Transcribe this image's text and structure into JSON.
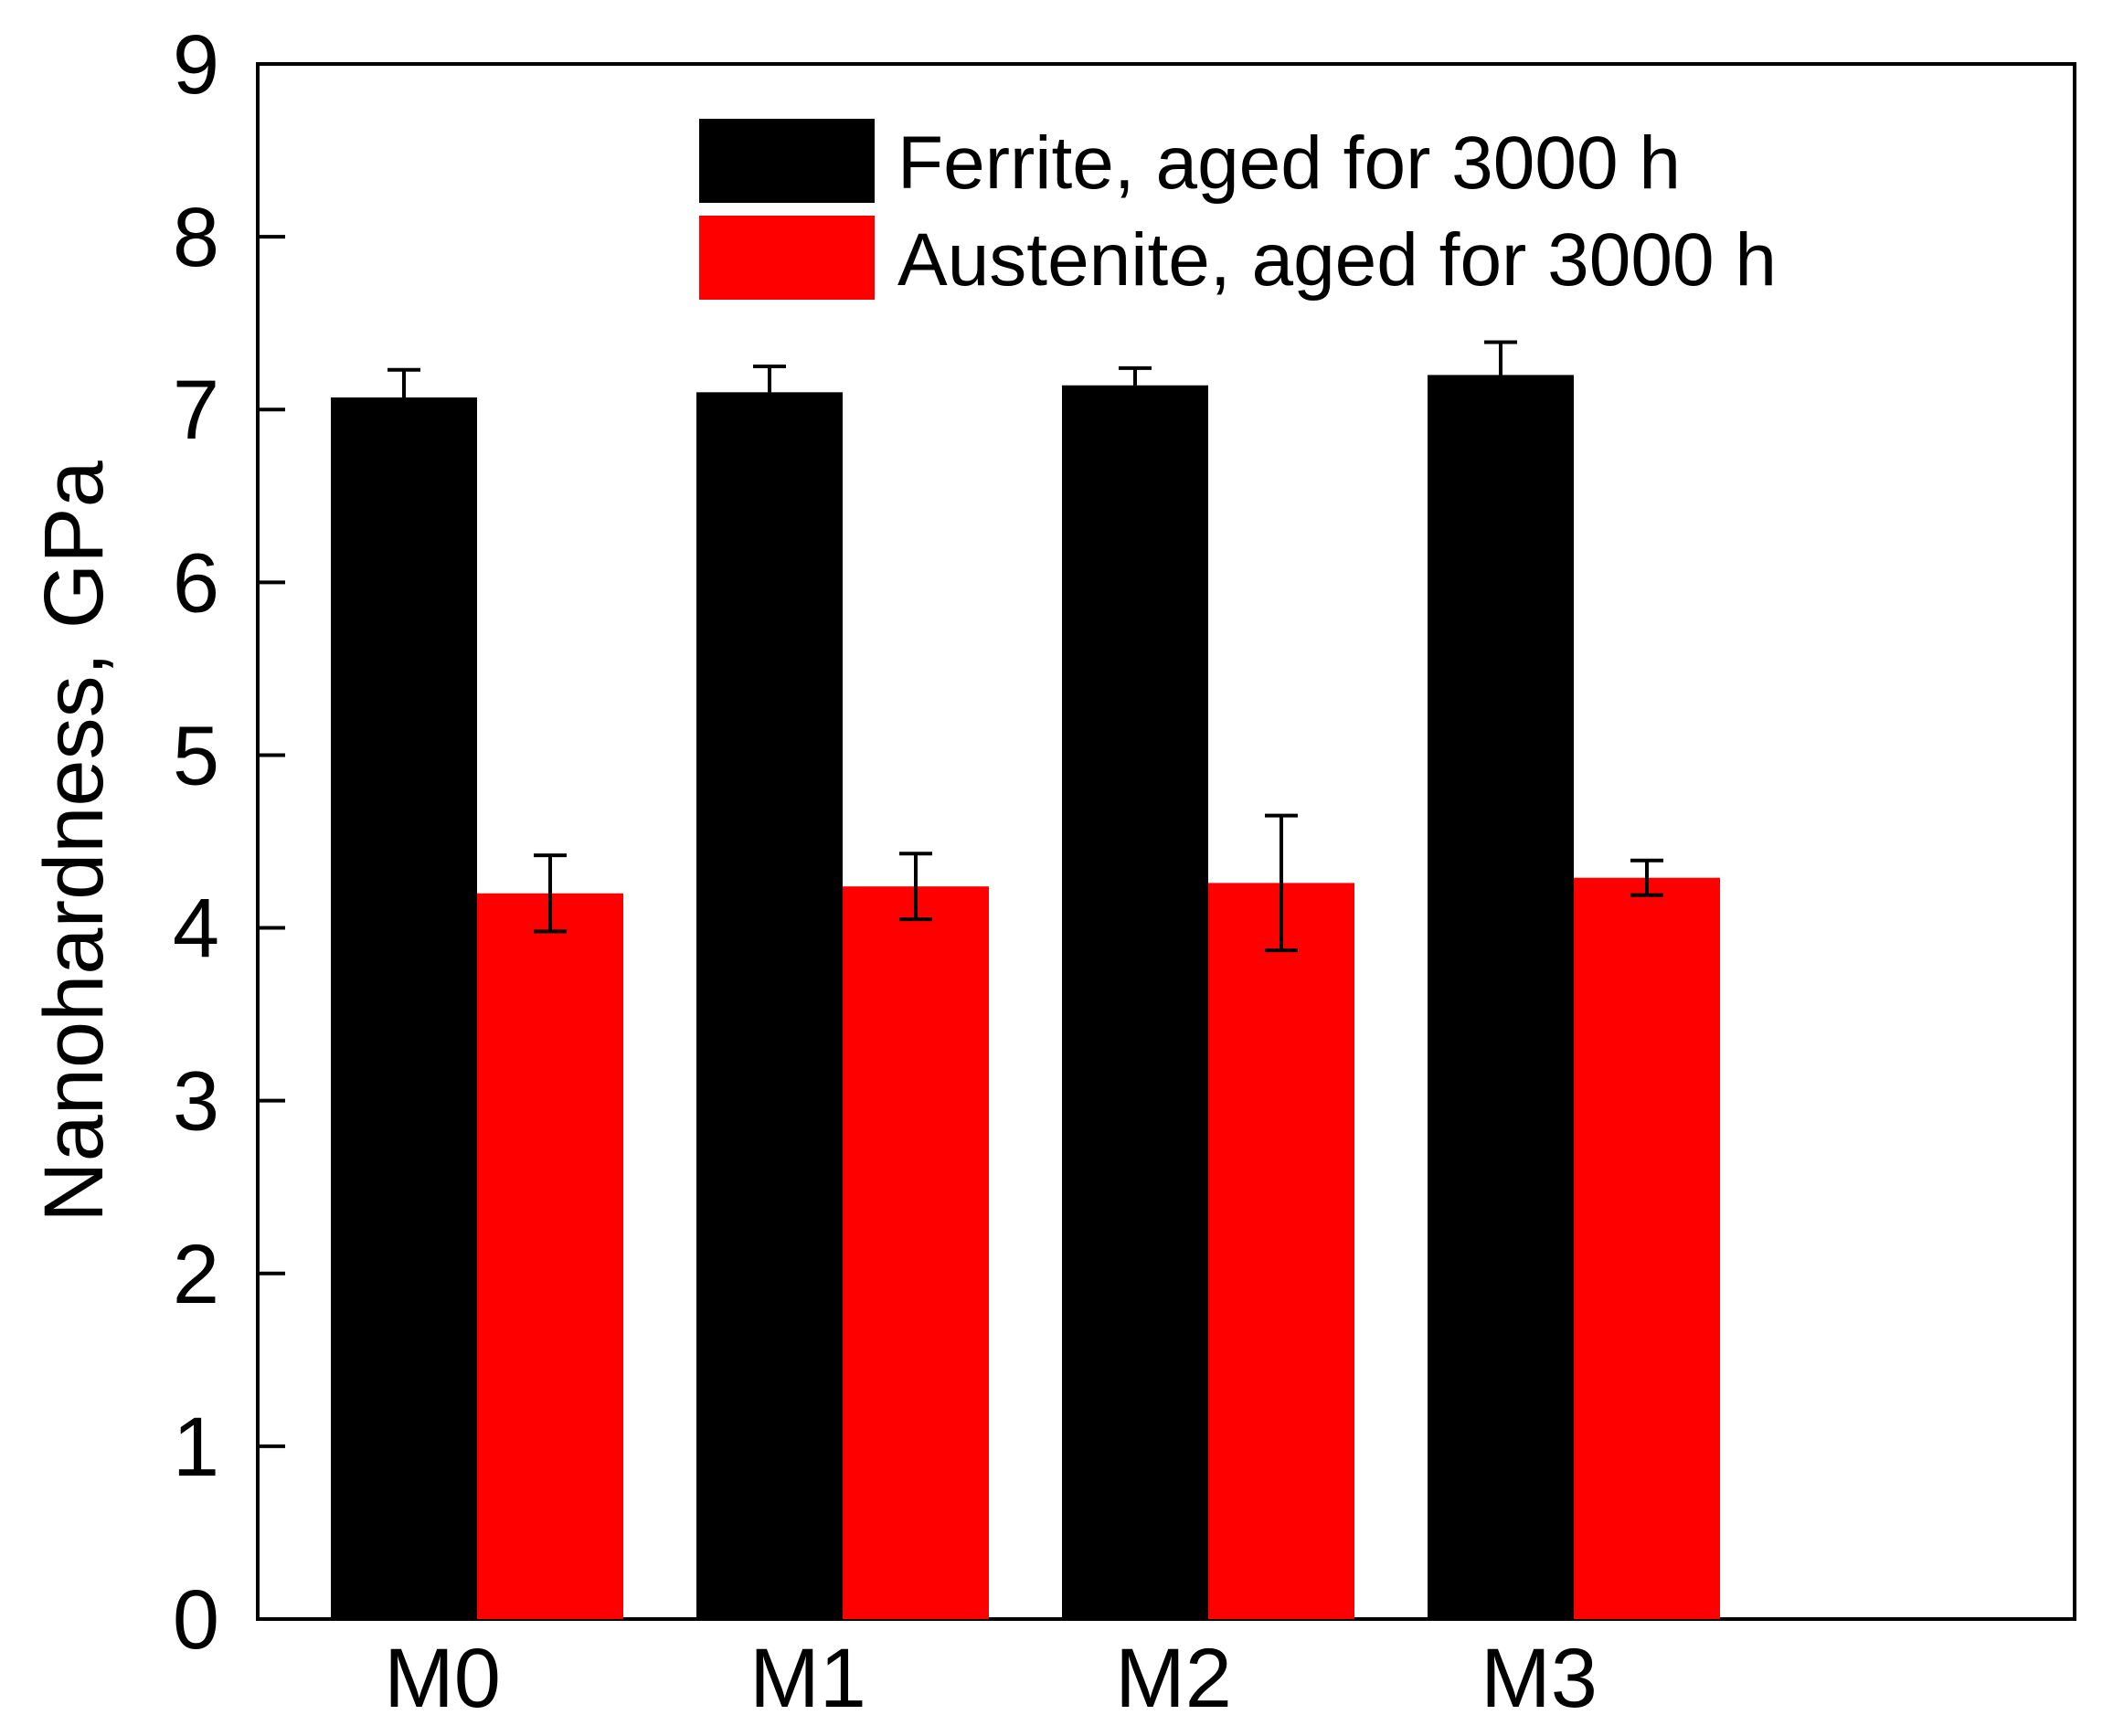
{
  "chart_data": {
    "type": "bar",
    "title": "",
    "xlabel": "",
    "ylabel": "Nanohardness, GPa",
    "ylim": [
      0,
      9
    ],
    "yticks": [
      0,
      1,
      2,
      3,
      4,
      5,
      6,
      7,
      8,
      9
    ],
    "grid": false,
    "legend_position": "top",
    "categories": [
      "M0",
      "M1",
      "M2",
      "M3"
    ],
    "series": [
      {
        "name": "Ferrite, aged for 3000 h",
        "color": "#000000",
        "values": [
          7.07,
          7.1,
          7.14,
          7.2
        ],
        "errors": [
          0.16,
          0.15,
          0.1,
          0.19
        ]
      },
      {
        "name": "Austenite, aged for 3000 h",
        "color": "#ff0000",
        "values": [
          4.2,
          4.24,
          4.26,
          4.29
        ],
        "errors": [
          0.22,
          0.19,
          0.39,
          0.1
        ]
      }
    ]
  }
}
